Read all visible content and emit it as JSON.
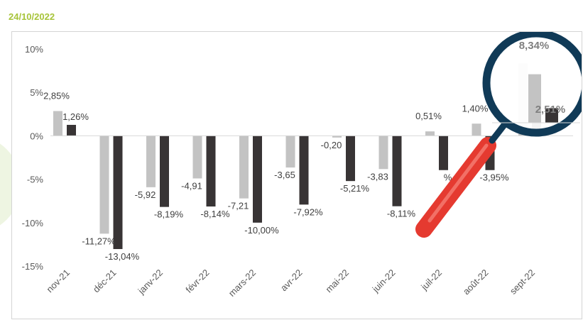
{
  "header": {
    "date": "24/10/2022"
  },
  "colors": {
    "series_light": "#c3c3c3",
    "series_dark": "#383435",
    "magnifier_ring": "#103a57",
    "magnifier_handle": "#e53a30",
    "date_text": "#a7c43a"
  },
  "magnifier": {
    "icon": "magnifying-glass-icon",
    "labels": [
      "8,34%",
      "2,51%"
    ]
  },
  "chart_data": {
    "type": "bar",
    "categories": [
      "nov-21",
      "déc-21",
      "janv-22",
      "févr-22",
      "mars-22",
      "avr-22",
      "mai-22",
      "juin-22",
      "juil-22",
      "août-22",
      "sept-22"
    ],
    "series": [
      {
        "values": [
          2.85,
          -11.27,
          -5.92,
          -4.91,
          -7.21,
          -3.65,
          -0.2,
          -3.83,
          0.51,
          1.4,
          8.34
        ],
        "labels": [
          "2,85%",
          "-11,27%",
          "-5,92",
          "-4,91",
          "-7,21",
          "-3,65",
          "-0,20",
          "-3,83",
          "0,51%",
          "1,40%",
          "8,34%"
        ]
      },
      {
        "values": [
          1.26,
          -13.04,
          -8.19,
          -8.14,
          -10.0,
          -7.92,
          -5.21,
          -8.11,
          -3.95,
          -3.95,
          2.51
        ],
        "labels": [
          "1,26%",
          "-13,04%",
          "-8,19%",
          "-8,14%",
          "-10,00%",
          "-7,92%",
          "-5,21%",
          "-8,11%",
          "%",
          "-3,95%",
          "2,51%"
        ]
      }
    ],
    "y_ticks": [
      10,
      5,
      0,
      -5,
      -10,
      -15
    ],
    "y_tick_labels": [
      "10%",
      "5%",
      "0%",
      "-5%",
      "-10%",
      "-15%"
    ],
    "ylim": [
      -15,
      10
    ],
    "grid": false,
    "legend": "none"
  }
}
